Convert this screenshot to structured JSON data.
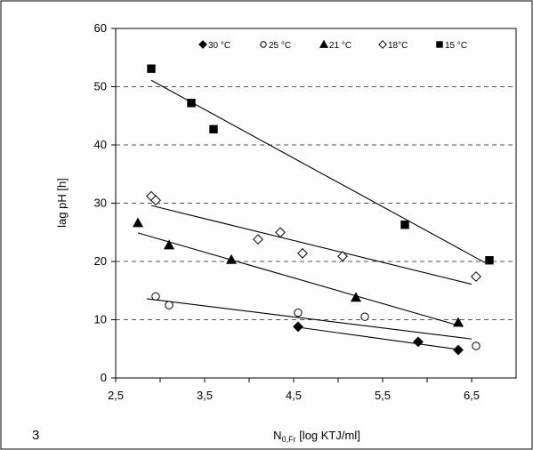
{
  "panel_label": "3",
  "chart_data": {
    "type": "scatter",
    "xlabel_main": "N",
    "xlabel_sub": "0,Fr",
    "xlabel_rest": " [log KTJ/ml]",
    "ylabel": "lag pH [h]",
    "xlim": [
      2.5,
      7.0
    ],
    "ylim": [
      0,
      60
    ],
    "xticks": [
      2.5,
      3.5,
      4.5,
      5.5,
      6.5
    ],
    "xtick_labels": [
      "2,5",
      "3,5",
      "4,5",
      "5,5",
      "6,5"
    ],
    "yticks": [
      0,
      10,
      20,
      30,
      40,
      50,
      60
    ],
    "ytick_labels": [
      "0",
      "10",
      "20",
      "30",
      "40",
      "50",
      "60"
    ],
    "grid": "horizontal dashed",
    "legend_position": "top",
    "series": [
      {
        "name": "30 °C",
        "marker": "diamond",
        "fill": "#000000",
        "points": [
          [
            4.55,
            8.8
          ],
          [
            5.9,
            6.2
          ],
          [
            6.35,
            4.8
          ]
        ],
        "fit": [
          [
            4.55,
            8.7
          ],
          [
            6.4,
            4.8
          ]
        ]
      },
      {
        "name": "25 °C",
        "marker": "circle",
        "fill": "none",
        "points": [
          [
            2.95,
            14.0
          ],
          [
            3.1,
            12.5
          ],
          [
            4.55,
            11.2
          ],
          [
            5.3,
            10.5
          ],
          [
            6.55,
            5.5
          ]
        ],
        "fit": [
          [
            2.85,
            13.6
          ],
          [
            6.5,
            6.7
          ]
        ]
      },
      {
        "name": "21 °C",
        "marker": "triangle",
        "fill": "#000000",
        "points": [
          [
            2.75,
            26.6
          ],
          [
            3.1,
            22.8
          ],
          [
            3.8,
            20.3
          ],
          [
            5.2,
            13.8
          ],
          [
            6.35,
            9.5
          ]
        ],
        "fit": [
          [
            2.75,
            24.9
          ],
          [
            6.4,
            8.8
          ]
        ]
      },
      {
        "name": "18°C",
        "marker": "diamond",
        "fill": "none",
        "points": [
          [
            2.9,
            31.2
          ],
          [
            2.95,
            30.5
          ],
          [
            4.1,
            23.8
          ],
          [
            4.35,
            25.0
          ],
          [
            4.6,
            21.4
          ],
          [
            5.05,
            20.9
          ],
          [
            6.55,
            17.4
          ]
        ],
        "fit": [
          [
            2.9,
            29.6
          ],
          [
            6.5,
            16.1
          ]
        ]
      },
      {
        "name": "15 °C",
        "marker": "square",
        "fill": "#000000",
        "points": [
          [
            2.9,
            53.1
          ],
          [
            3.35,
            47.2
          ],
          [
            3.6,
            42.7
          ],
          [
            5.75,
            26.3
          ],
          [
            6.7,
            20.2
          ]
        ],
        "fit": [
          [
            2.9,
            51.1
          ],
          [
            6.65,
            19.8
          ]
        ]
      }
    ]
  }
}
